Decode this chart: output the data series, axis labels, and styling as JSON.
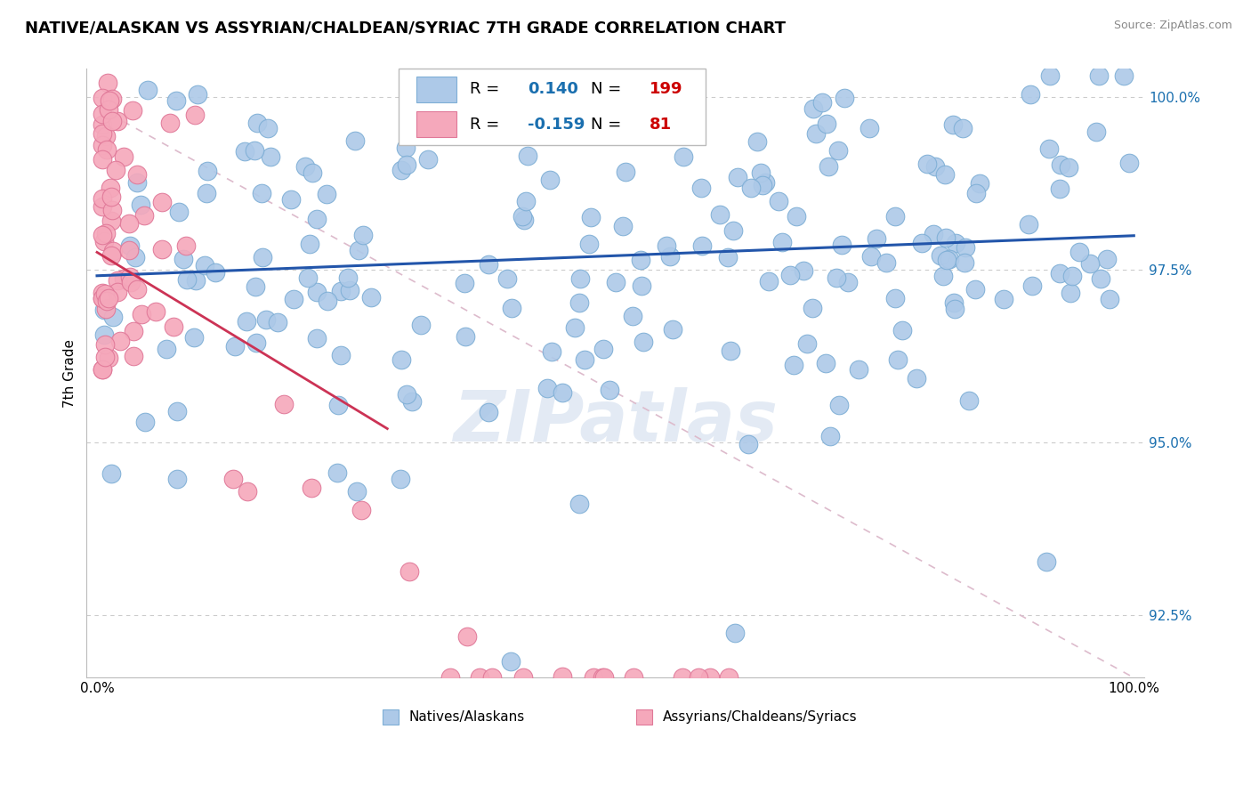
{
  "title": "NATIVE/ALASKAN VS ASSYRIAN/CHALDEAN/SYRIAC 7TH GRADE CORRELATION CHART",
  "source": "Source: ZipAtlas.com",
  "ylabel": "7th Grade",
  "xmin": 0.0,
  "xmax": 1.0,
  "ymin": 0.916,
  "ymax": 1.004,
  "yticks": [
    0.925,
    0.95,
    0.975,
    1.0
  ],
  "ytick_labels": [
    "92.5%",
    "95.0%",
    "97.5%",
    "100.0%"
  ],
  "blue_R": 0.14,
  "blue_N": 199,
  "pink_R": -0.159,
  "pink_N": 81,
  "blue_color": "#adc9e8",
  "pink_color": "#f5a8bb",
  "blue_edge": "#7fafd6",
  "pink_edge": "#e07898",
  "legend_blue_label": "Natives/Alaskans",
  "legend_pink_label": "Assyrians/Chaldeans/Syriacs",
  "blue_line_color": "#2255aa",
  "pink_line_color": "#cc3355",
  "diag_line_color": "#ddbbcc",
  "watermark": "ZIPatlas",
  "title_fontsize": 13,
  "axis_label_fontsize": 11,
  "tick_fontsize": 11,
  "R_N_fontsize": 13,
  "legend_R_color": "#1a6faf",
  "legend_N_color": "#cc0000"
}
